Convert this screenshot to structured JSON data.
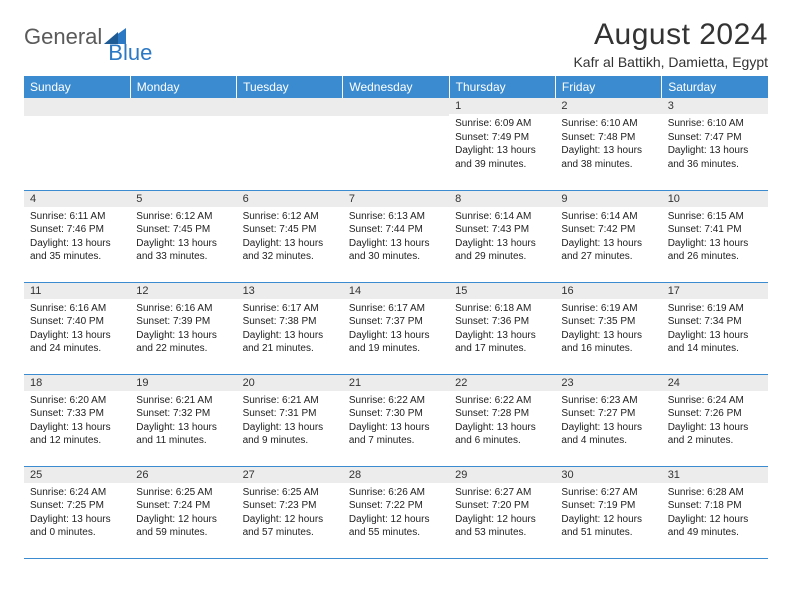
{
  "brand": {
    "general": "General",
    "blue": "Blue"
  },
  "title": "August 2024",
  "location": "Kafr al Battikh, Damietta, Egypt",
  "colors": {
    "header_bg": "#3b8bd0",
    "header_text": "#ffffff",
    "daynum_bg": "#ececec",
    "border": "#3b8bd0",
    "brand_grey": "#5a5a5a",
    "brand_blue": "#2b78c4",
    "text": "#222222"
  },
  "weekdays": [
    "Sunday",
    "Monday",
    "Tuesday",
    "Wednesday",
    "Thursday",
    "Friday",
    "Saturday"
  ],
  "weeks": [
    [
      {
        "day": "",
        "sunrise": "",
        "sunset": "",
        "daylight": ""
      },
      {
        "day": "",
        "sunrise": "",
        "sunset": "",
        "daylight": ""
      },
      {
        "day": "",
        "sunrise": "",
        "sunset": "",
        "daylight": ""
      },
      {
        "day": "",
        "sunrise": "",
        "sunset": "",
        "daylight": ""
      },
      {
        "day": "1",
        "sunrise": "Sunrise: 6:09 AM",
        "sunset": "Sunset: 7:49 PM",
        "daylight": "Daylight: 13 hours and 39 minutes."
      },
      {
        "day": "2",
        "sunrise": "Sunrise: 6:10 AM",
        "sunset": "Sunset: 7:48 PM",
        "daylight": "Daylight: 13 hours and 38 minutes."
      },
      {
        "day": "3",
        "sunrise": "Sunrise: 6:10 AM",
        "sunset": "Sunset: 7:47 PM",
        "daylight": "Daylight: 13 hours and 36 minutes."
      }
    ],
    [
      {
        "day": "4",
        "sunrise": "Sunrise: 6:11 AM",
        "sunset": "Sunset: 7:46 PM",
        "daylight": "Daylight: 13 hours and 35 minutes."
      },
      {
        "day": "5",
        "sunrise": "Sunrise: 6:12 AM",
        "sunset": "Sunset: 7:45 PM",
        "daylight": "Daylight: 13 hours and 33 minutes."
      },
      {
        "day": "6",
        "sunrise": "Sunrise: 6:12 AM",
        "sunset": "Sunset: 7:45 PM",
        "daylight": "Daylight: 13 hours and 32 minutes."
      },
      {
        "day": "7",
        "sunrise": "Sunrise: 6:13 AM",
        "sunset": "Sunset: 7:44 PM",
        "daylight": "Daylight: 13 hours and 30 minutes."
      },
      {
        "day": "8",
        "sunrise": "Sunrise: 6:14 AM",
        "sunset": "Sunset: 7:43 PM",
        "daylight": "Daylight: 13 hours and 29 minutes."
      },
      {
        "day": "9",
        "sunrise": "Sunrise: 6:14 AM",
        "sunset": "Sunset: 7:42 PM",
        "daylight": "Daylight: 13 hours and 27 minutes."
      },
      {
        "day": "10",
        "sunrise": "Sunrise: 6:15 AM",
        "sunset": "Sunset: 7:41 PM",
        "daylight": "Daylight: 13 hours and 26 minutes."
      }
    ],
    [
      {
        "day": "11",
        "sunrise": "Sunrise: 6:16 AM",
        "sunset": "Sunset: 7:40 PM",
        "daylight": "Daylight: 13 hours and 24 minutes."
      },
      {
        "day": "12",
        "sunrise": "Sunrise: 6:16 AM",
        "sunset": "Sunset: 7:39 PM",
        "daylight": "Daylight: 13 hours and 22 minutes."
      },
      {
        "day": "13",
        "sunrise": "Sunrise: 6:17 AM",
        "sunset": "Sunset: 7:38 PM",
        "daylight": "Daylight: 13 hours and 21 minutes."
      },
      {
        "day": "14",
        "sunrise": "Sunrise: 6:17 AM",
        "sunset": "Sunset: 7:37 PM",
        "daylight": "Daylight: 13 hours and 19 minutes."
      },
      {
        "day": "15",
        "sunrise": "Sunrise: 6:18 AM",
        "sunset": "Sunset: 7:36 PM",
        "daylight": "Daylight: 13 hours and 17 minutes."
      },
      {
        "day": "16",
        "sunrise": "Sunrise: 6:19 AM",
        "sunset": "Sunset: 7:35 PM",
        "daylight": "Daylight: 13 hours and 16 minutes."
      },
      {
        "day": "17",
        "sunrise": "Sunrise: 6:19 AM",
        "sunset": "Sunset: 7:34 PM",
        "daylight": "Daylight: 13 hours and 14 minutes."
      }
    ],
    [
      {
        "day": "18",
        "sunrise": "Sunrise: 6:20 AM",
        "sunset": "Sunset: 7:33 PM",
        "daylight": "Daylight: 13 hours and 12 minutes."
      },
      {
        "day": "19",
        "sunrise": "Sunrise: 6:21 AM",
        "sunset": "Sunset: 7:32 PM",
        "daylight": "Daylight: 13 hours and 11 minutes."
      },
      {
        "day": "20",
        "sunrise": "Sunrise: 6:21 AM",
        "sunset": "Sunset: 7:31 PM",
        "daylight": "Daylight: 13 hours and 9 minutes."
      },
      {
        "day": "21",
        "sunrise": "Sunrise: 6:22 AM",
        "sunset": "Sunset: 7:30 PM",
        "daylight": "Daylight: 13 hours and 7 minutes."
      },
      {
        "day": "22",
        "sunrise": "Sunrise: 6:22 AM",
        "sunset": "Sunset: 7:28 PM",
        "daylight": "Daylight: 13 hours and 6 minutes."
      },
      {
        "day": "23",
        "sunrise": "Sunrise: 6:23 AM",
        "sunset": "Sunset: 7:27 PM",
        "daylight": "Daylight: 13 hours and 4 minutes."
      },
      {
        "day": "24",
        "sunrise": "Sunrise: 6:24 AM",
        "sunset": "Sunset: 7:26 PM",
        "daylight": "Daylight: 13 hours and 2 minutes."
      }
    ],
    [
      {
        "day": "25",
        "sunrise": "Sunrise: 6:24 AM",
        "sunset": "Sunset: 7:25 PM",
        "daylight": "Daylight: 13 hours and 0 minutes."
      },
      {
        "day": "26",
        "sunrise": "Sunrise: 6:25 AM",
        "sunset": "Sunset: 7:24 PM",
        "daylight": "Daylight: 12 hours and 59 minutes."
      },
      {
        "day": "27",
        "sunrise": "Sunrise: 6:25 AM",
        "sunset": "Sunset: 7:23 PM",
        "daylight": "Daylight: 12 hours and 57 minutes."
      },
      {
        "day": "28",
        "sunrise": "Sunrise: 6:26 AM",
        "sunset": "Sunset: 7:22 PM",
        "daylight": "Daylight: 12 hours and 55 minutes."
      },
      {
        "day": "29",
        "sunrise": "Sunrise: 6:27 AM",
        "sunset": "Sunset: 7:20 PM",
        "daylight": "Daylight: 12 hours and 53 minutes."
      },
      {
        "day": "30",
        "sunrise": "Sunrise: 6:27 AM",
        "sunset": "Sunset: 7:19 PM",
        "daylight": "Daylight: 12 hours and 51 minutes."
      },
      {
        "day": "31",
        "sunrise": "Sunrise: 6:28 AM",
        "sunset": "Sunset: 7:18 PM",
        "daylight": "Daylight: 12 hours and 49 minutes."
      }
    ]
  ]
}
